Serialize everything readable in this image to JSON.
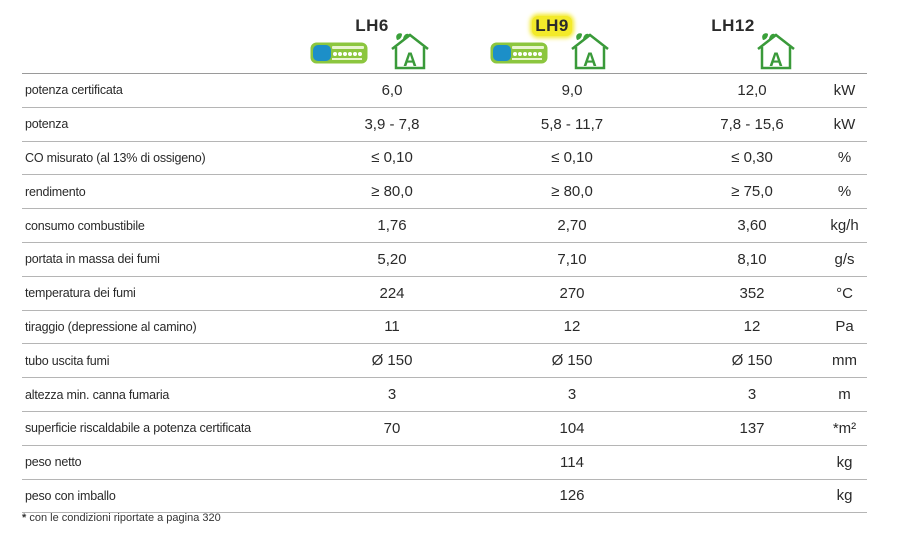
{
  "models": [
    {
      "name": "LH6",
      "highlighted": false
    },
    {
      "name": "LH9",
      "highlighted": true
    },
    {
      "name": "LH12",
      "highlighted": false
    }
  ],
  "house_badge_letter": "A",
  "colors": {
    "house_green": "#3a9a3a",
    "leaf_green": "#3aa03a",
    "label_green": "#8cc63f",
    "highlight": "#f3ea2a",
    "label_blue": "#1c8fc8"
  },
  "rows": [
    {
      "label": "potenza certificata",
      "v1": "6,0",
      "v2": "9,0",
      "v3": "12,0",
      "unit": "kW"
    },
    {
      "label": "potenza",
      "v1": "3,9 - 7,8",
      "v2": "5,8 - 11,7",
      "v3": "7,8 - 15,6",
      "unit": "kW"
    },
    {
      "label": "CO misurato (al 13% di ossigeno)",
      "v1": "≤ 0,10",
      "v2": "≤ 0,10",
      "v3": "≤ 0,30",
      "unit": "%"
    },
    {
      "label": "rendimento",
      "v1": "≥ 80,0",
      "v2": "≥ 80,0",
      "v3": "≥ 75,0",
      "unit": "%"
    },
    {
      "label": "consumo combustibile",
      "v1": "1,76",
      "v2": "2,70",
      "v3": "3,60",
      "unit": "kg/h"
    },
    {
      "label": "portata in massa dei fumi",
      "v1": "5,20",
      "v2": "7,10",
      "v3": "8,10",
      "unit": "g/s"
    },
    {
      "label": "temperatura dei fumi",
      "v1": "224",
      "v2": "270",
      "v3": "352",
      "unit": "°C"
    },
    {
      "label": "tiraggio (depressione al camino)",
      "v1": "11",
      "v2": "12",
      "v3": "12",
      "unit": "Pa"
    },
    {
      "label": "tubo uscita fumi",
      "v1": "Ø 150",
      "v2": "Ø 150",
      "v3": "Ø 150",
      "unit": "mm"
    },
    {
      "label": "altezza min. canna fumaria",
      "v1": "3",
      "v2": "3",
      "v3": "3",
      "unit": "m"
    },
    {
      "label": "superficie riscaldabile a potenza certificata",
      "v1": "70",
      "v2": "104",
      "v3": "137",
      "unit": "*m²"
    },
    {
      "label": "peso netto",
      "v1": "",
      "v2": "114",
      "v3": "",
      "unit": "kg"
    },
    {
      "label": "peso con imballo",
      "v1": "",
      "v2": "126",
      "v3": "",
      "unit": "kg"
    }
  ],
  "footnote": {
    "mark": "*",
    "text": "con le condizioni riportate a pagina 320"
  }
}
